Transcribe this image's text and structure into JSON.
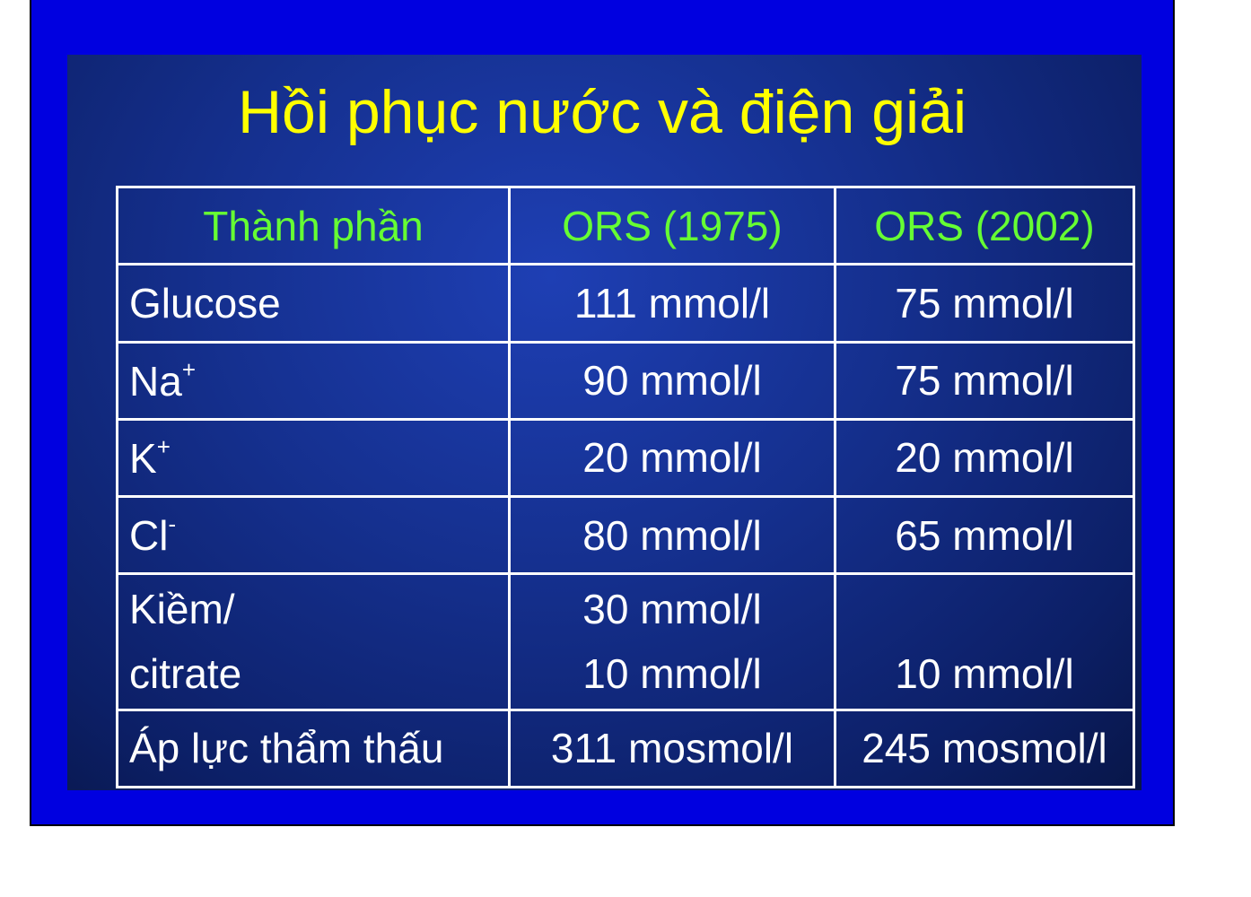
{
  "title": "Hồi phục nước và điện giải",
  "table": {
    "headers": [
      "Thành phần",
      "ORS (1975)",
      "ORS (2002)"
    ],
    "rows": [
      {
        "label": "Glucose",
        "label_sup": "",
        "ors1975": "111 mmol/l",
        "ors2002": "75 mmol/l"
      },
      {
        "label": "Na",
        "label_sup": "+",
        "ors1975": "90 mmol/l",
        "ors2002": "75 mmol/l"
      },
      {
        "label": "K",
        "label_sup": "+",
        "ors1975": "20 mmol/l",
        "ors2002": "20 mmol/l"
      },
      {
        "label": "Cl",
        "label_sup": "-",
        "ors1975": "80 mmol/l",
        "ors2002": "65 mmol/l"
      },
      {
        "label_lines": [
          "Kiềm/",
          "citrate"
        ],
        "ors1975_lines": [
          "30 mmol/l",
          "10 mmol/l"
        ],
        "ors2002_lines": [
          "",
          "10 mmol/l"
        ]
      },
      {
        "label": "Áp lực thẩm thấu",
        "label_sup": "",
        "ors1975": "311 mosmol/l",
        "ors2002": "245 mosmol/l"
      }
    ]
  },
  "colors": {
    "frame_background": "#0000e0",
    "title": "#ffff00",
    "header_text": "#66ff33",
    "cell_text": "#ffffff",
    "grid": "#ffffff"
  }
}
